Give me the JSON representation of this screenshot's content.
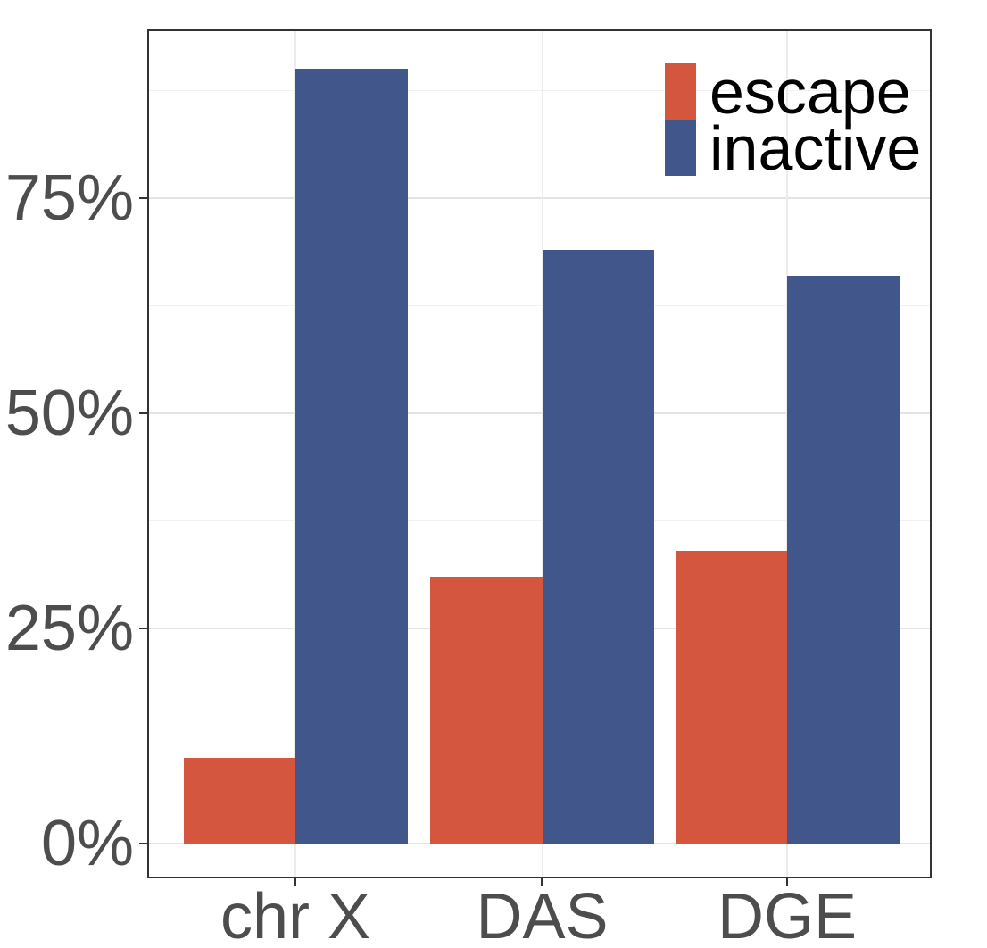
{
  "chart_data": {
    "type": "bar",
    "bar_mode": "dodged",
    "title": "",
    "xlabel": "",
    "ylabel": "",
    "categories": [
      "chr X",
      "DAS",
      "DGE"
    ],
    "series": [
      {
        "name": "escape",
        "color": "#d5563e",
        "values": [
          10,
          31,
          34
        ]
      },
      {
        "name": "inactive",
        "color": "#41568a",
        "values": [
          90,
          69,
          66
        ]
      }
    ],
    "y_tick_labels": [
      "0%",
      "25%",
      "50%",
      "75%"
    ],
    "y_tick_values": [
      0,
      25,
      50,
      75
    ],
    "y_minor_values": [
      12.5,
      37.5,
      62.5,
      87.5
    ],
    "ylim": [
      -4,
      94.6
    ],
    "grid": "horizontal major+minor, vertical major at categories",
    "legend_position": "top-right-inside"
  },
  "colors": {
    "escape": "#d5563e",
    "inactive": "#41568a",
    "axis_text": "#4d4d4d",
    "legend_text": "#000000",
    "panel_border": "#333333",
    "grid_major": "#e4e4e4",
    "grid_minor": "#f1f1f1",
    "grid_vertical": "#ececec",
    "tick_mark": "#333333",
    "background": "#ffffff"
  }
}
